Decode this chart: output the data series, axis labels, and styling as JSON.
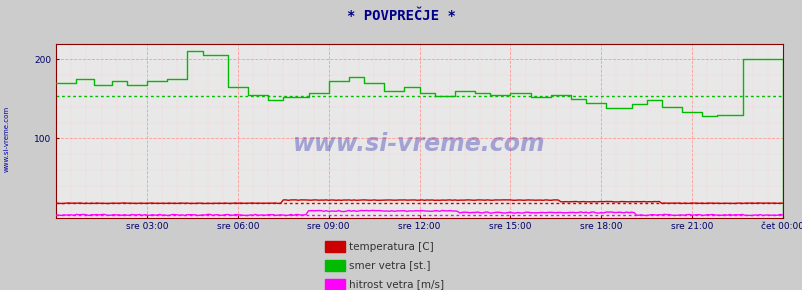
{
  "title": "* POVPREČJE *",
  "title_color": "#000088",
  "bg_color": "#cccccc",
  "plot_bg_color": "#e8e8e8",
  "grid_color_major": "#ff9999",
  "grid_color_minor": "#ffcccc",
  "ylim": [
    0,
    220
  ],
  "yticks": [
    100,
    200
  ],
  "xtick_labels": [
    "sre 03:00",
    "sre 06:00",
    "sre 09:00",
    "sre 12:00",
    "sre 15:00",
    "sre 18:00",
    "sre 21:00",
    "čet 00:00"
  ],
  "xtick_positions": [
    36,
    72,
    108,
    144,
    180,
    216,
    252,
    288
  ],
  "n_points": 289,
  "watermark": "www.si-vreme.com",
  "legend_labels": [
    "temperatura [C]",
    "smer vetra [st.]",
    "hitrost vetra [m/s]"
  ],
  "legend_colors": [
    "#cc0000",
    "#00bb00",
    "#ff00ff"
  ],
  "avg_wind_dir": 153,
  "avg_temp": 18,
  "avg_wind_speed": 3,
  "wind_dir_color": "#00bb00",
  "temp_color": "#cc0000",
  "wind_speed_color": "#ff00ff",
  "line_width": 1.0,
  "sidebar_text": "www.si-vreme.com",
  "sidebar_color": "#0000aa"
}
